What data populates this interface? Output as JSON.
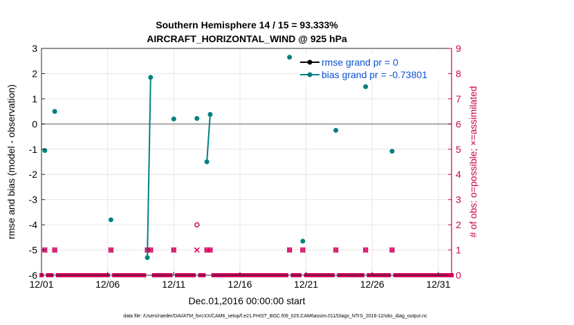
{
  "chart_data": {
    "type": "scatter",
    "title_line1": "Southern Hemisphere 14 / 15 = 93.333%",
    "title_line2": "AIRCRAFT_HORIZONTAL_WIND @ 925 hPa",
    "ylabel_left": "rmse and bias (model - observation)",
    "ylabel_right": "# of obs: o=possible; ×=assimilated",
    "xlabel": "Dec.01,2016 00:00:00 start",
    "footnote": "data file: /Users/raeder/DAI/ATM_forcXX/CAM6_setup/f.e21.FHIST_BGC.f09_025.CAM6assim.011/Diags_NTrS_2016-12/obs_diag_output.nc",
    "xlim": [
      1,
      32
    ],
    "ylim_left": [
      -6,
      3
    ],
    "ylim_right": [
      0,
      9
    ],
    "x_ticks": [
      1,
      6,
      11,
      16,
      21,
      26,
      31
    ],
    "x_tick_labels": [
      "12/01",
      "12/06",
      "12/11",
      "12/16",
      "12/21",
      "12/26",
      "12/31"
    ],
    "y_ticks_left": [
      -6,
      -5,
      -4,
      -3,
      -2,
      -1,
      0,
      1,
      2,
      3
    ],
    "y_tick_labels_left": [
      "-6",
      "-5",
      "-4",
      "-3",
      "-2",
      "-1",
      "0",
      "1",
      "2",
      "3"
    ],
    "y_ticks_right": [
      0,
      1,
      2,
      3,
      4,
      5,
      6,
      7,
      8,
      9
    ],
    "y_tick_labels_right": [
      "0",
      "1",
      "2",
      "3",
      "4",
      "5",
      "6",
      "7",
      "8",
      "9"
    ],
    "grid": true,
    "zero_line": 0,
    "legend_position": "top-right",
    "colors": {
      "rmse": "#000000",
      "bias": "#008080",
      "obs": "#d6005e",
      "zero": "#a6a6a6",
      "legend_text": "#0a4fd6",
      "right_axis": "#c8004f"
    },
    "series": [
      {
        "name": "rmse grand pr = 0",
        "points": []
      },
      {
        "name": "bias grand pr = -0.73801",
        "points": [
          [
            1.25,
            -1.05
          ],
          [
            2.0,
            0.5
          ],
          [
            6.25,
            -3.8
          ],
          [
            9.0,
            -5.3
          ],
          [
            9.25,
            1.85
          ],
          [
            11.0,
            0.2
          ],
          [
            12.75,
            0.22
          ],
          [
            13.5,
            -1.5
          ],
          [
            13.75,
            0.38
          ],
          [
            19.75,
            2.65
          ],
          [
            20.75,
            -4.65
          ],
          [
            23.25,
            -0.25
          ],
          [
            25.5,
            1.48
          ],
          [
            27.5,
            -1.08
          ]
        ],
        "connected": [
          [
            3,
            4
          ],
          [
            7,
            8
          ]
        ]
      }
    ],
    "obs_possible": [
      {
        "x": 1.25,
        "count": 1
      },
      {
        "x": 2.0,
        "count": 1
      },
      {
        "x": 6.25,
        "count": 1
      },
      {
        "x": 9.0,
        "count": 1
      },
      {
        "x": 9.25,
        "count": 1
      },
      {
        "x": 11.0,
        "count": 1
      },
      {
        "x": 12.75,
        "count": 2
      },
      {
        "x": 13.5,
        "count": 1
      },
      {
        "x": 13.75,
        "count": 1
      },
      {
        "x": 19.75,
        "count": 1
      },
      {
        "x": 20.75,
        "count": 1
      },
      {
        "x": 23.25,
        "count": 1
      },
      {
        "x": 25.5,
        "count": 1
      },
      {
        "x": 27.5,
        "count": 1
      }
    ],
    "obs_assimilated": [
      {
        "x": 1.25,
        "count": 1
      },
      {
        "x": 2.0,
        "count": 1
      },
      {
        "x": 6.25,
        "count": 1
      },
      {
        "x": 9.0,
        "count": 1
      },
      {
        "x": 9.25,
        "count": 1
      },
      {
        "x": 11.0,
        "count": 1
      },
      {
        "x": 12.75,
        "count": 1
      },
      {
        "x": 13.5,
        "count": 1
      },
      {
        "x": 13.75,
        "count": 1
      },
      {
        "x": 19.75,
        "count": 1
      },
      {
        "x": 20.75,
        "count": 1
      },
      {
        "x": 23.25,
        "count": 1
      },
      {
        "x": 25.5,
        "count": 1
      },
      {
        "x": 27.5,
        "count": 1
      }
    ],
    "zero_count_step": 0.25
  }
}
